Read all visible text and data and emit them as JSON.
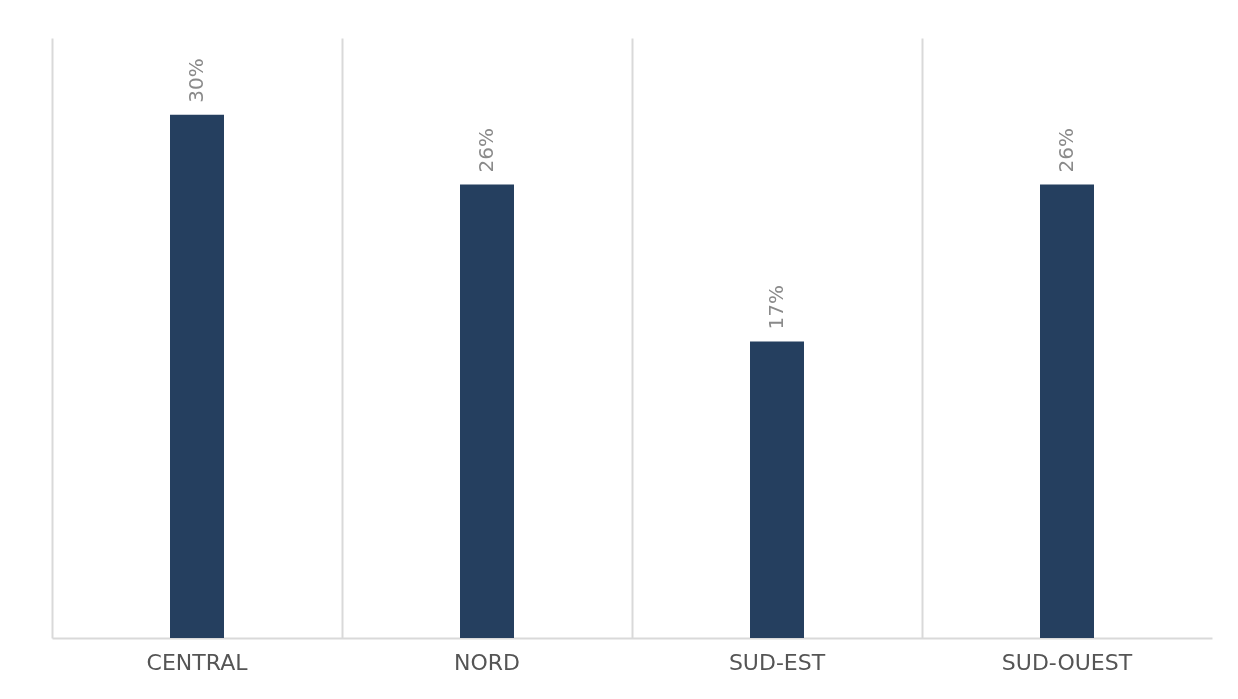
{
  "chart_data": {
    "type": "bar",
    "categories": [
      "CENTRAL",
      "NORD",
      "SUD-EST",
      "SUD-OUEST"
    ],
    "values": [
      30,
      26,
      17,
      26
    ],
    "value_labels": [
      "30%",
      "26%",
      "17%",
      "26%"
    ],
    "color": "#253f5f",
    "ylim": [
      0,
      34.4
    ],
    "grid": "x",
    "tick_labels": "x"
  }
}
